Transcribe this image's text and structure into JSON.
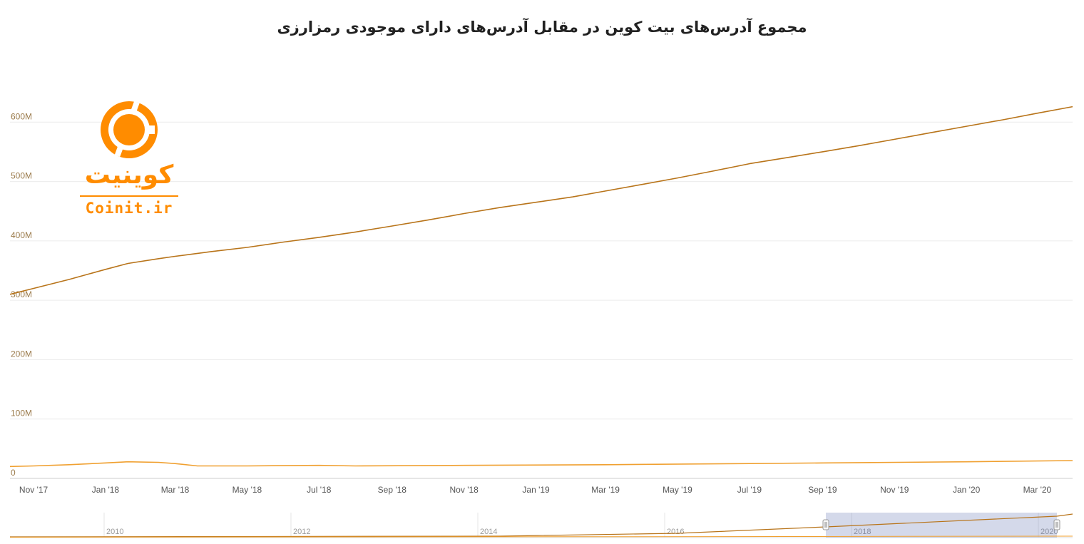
{
  "title": "مجموع آدرس‌های بیت کوین در مقابل آدرس‌های دارای موجودی رمزارزی",
  "logo": {
    "name_fa": "کوینیت",
    "name_en": "Coinit.ir",
    "color": "#ff8c00"
  },
  "chart_data": {
    "type": "line",
    "title": "مجموع آدرس‌های بیت کوین در مقابل آدرس‌های دارای موجودی رمزارزی",
    "xlabel": "",
    "ylabel": "",
    "ylim": [
      0,
      700
    ],
    "y_unit": "M",
    "y_ticks": [
      {
        "v": 0,
        "label": "0"
      },
      {
        "v": 100,
        "label": "100M"
      },
      {
        "v": 200,
        "label": "200M"
      },
      {
        "v": 300,
        "label": "300M"
      },
      {
        "v": 400,
        "label": "400M"
      },
      {
        "v": 500,
        "label": "500M"
      },
      {
        "v": 600,
        "label": "600M"
      }
    ],
    "x_range": [
      "2017-10-12",
      "2020-03-31"
    ],
    "x_ticks": [
      {
        "d": "2017-11-01",
        "label": "Nov '17"
      },
      {
        "d": "2018-01-01",
        "label": "Jan '18"
      },
      {
        "d": "2018-03-01",
        "label": "Mar '18"
      },
      {
        "d": "2018-05-01",
        "label": "May '18"
      },
      {
        "d": "2018-07-01",
        "label": "Jul '18"
      },
      {
        "d": "2018-09-01",
        "label": "Sep '18"
      },
      {
        "d": "2018-11-01",
        "label": "Nov '18"
      },
      {
        "d": "2019-01-01",
        "label": "Jan '19"
      },
      {
        "d": "2019-03-01",
        "label": "Mar '19"
      },
      {
        "d": "2019-05-01",
        "label": "May '19"
      },
      {
        "d": "2019-07-01",
        "label": "Jul '19"
      },
      {
        "d": "2019-09-01",
        "label": "Sep '19"
      },
      {
        "d": "2019-11-01",
        "label": "Nov '19"
      },
      {
        "d": "2020-01-01",
        "label": "Jan '20"
      },
      {
        "d": "2020-03-01",
        "label": "Mar '20"
      }
    ],
    "grid": true,
    "series": [
      {
        "color": "#b8741a",
        "points": [
          [
            "2017-10-12",
            310
          ],
          [
            "2017-11-01",
            320
          ],
          [
            "2017-12-01",
            335
          ],
          [
            "2018-01-01",
            352
          ],
          [
            "2018-01-20",
            362
          ],
          [
            "2018-02-15",
            370
          ],
          [
            "2018-03-01",
            374
          ],
          [
            "2018-04-01",
            382
          ],
          [
            "2018-05-01",
            389
          ],
          [
            "2018-06-01",
            398
          ],
          [
            "2018-07-01",
            406
          ],
          [
            "2018-08-01",
            415
          ],
          [
            "2018-09-01",
            425
          ],
          [
            "2018-10-01",
            435
          ],
          [
            "2018-11-01",
            446
          ],
          [
            "2018-12-01",
            456
          ],
          [
            "2019-01-01",
            465
          ],
          [
            "2019-02-01",
            474
          ],
          [
            "2019-03-01",
            484
          ],
          [
            "2019-04-01",
            495
          ],
          [
            "2019-05-01",
            506
          ],
          [
            "2019-06-01",
            518
          ],
          [
            "2019-07-01",
            530
          ],
          [
            "2019-08-01",
            540
          ],
          [
            "2019-09-01",
            550
          ],
          [
            "2019-10-01",
            560
          ],
          [
            "2019-11-01",
            571
          ],
          [
            "2019-12-01",
            582
          ],
          [
            "2020-01-01",
            593
          ],
          [
            "2020-02-01",
            604
          ],
          [
            "2020-03-01",
            615
          ],
          [
            "2020-03-31",
            626
          ]
        ]
      },
      {
        "color": "#f0a030",
        "points": [
          [
            "2017-10-12",
            20
          ],
          [
            "2017-11-01",
            21
          ],
          [
            "2017-12-01",
            23
          ],
          [
            "2018-01-01",
            26
          ],
          [
            "2018-01-20",
            28
          ],
          [
            "2018-02-15",
            27
          ],
          [
            "2018-03-01",
            25
          ],
          [
            "2018-03-20",
            21
          ],
          [
            "2018-05-01",
            21
          ],
          [
            "2018-07-01",
            22
          ],
          [
            "2018-08-01",
            21
          ],
          [
            "2018-11-01",
            22
          ],
          [
            "2019-03-01",
            23
          ],
          [
            "2019-07-01",
            25
          ],
          [
            "2019-09-01",
            26
          ],
          [
            "2019-11-01",
            27
          ],
          [
            "2020-01-01",
            28
          ],
          [
            "2020-03-31",
            30
          ]
        ]
      }
    ],
    "navigator": {
      "labels": [
        "2010",
        "2012",
        "2014",
        "2016",
        "2018",
        "2020"
      ],
      "selected_range": [
        "2017-10-12",
        "2020-03-31"
      ]
    }
  }
}
